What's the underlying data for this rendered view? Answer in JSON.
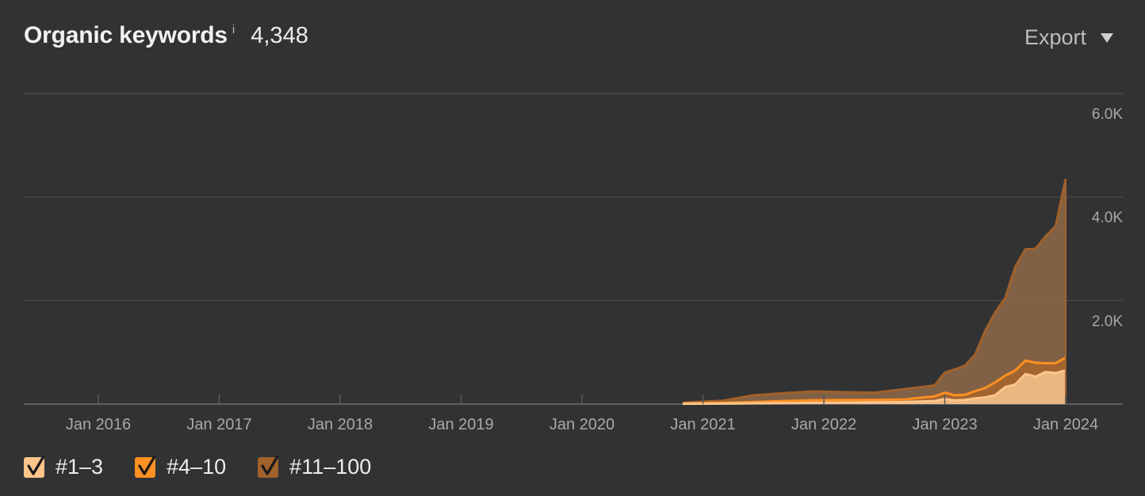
{
  "header": {
    "title": "Organic keywords",
    "info": "i",
    "count": "4,348",
    "export_label": "Export"
  },
  "legend": [
    {
      "label": "#1–3",
      "color": "#ffc58a"
    },
    {
      "label": "#4–10",
      "color": "#ff9022"
    },
    {
      "label": "#11–100",
      "color": "#a1612a"
    }
  ],
  "chart_data": {
    "type": "area",
    "stacked": true,
    "title": "Organic keywords",
    "xlabel": "",
    "ylabel": "",
    "x_tick_labels": [
      "Jan 2016",
      "Jan 2017",
      "Jan 2018",
      "Jan 2019",
      "Jan 2020",
      "Jan 2021",
      "Jan 2022",
      "Jan 2023",
      "Jan 2024"
    ],
    "y_tick_labels": [
      "2.0K",
      "4.0K",
      "6.0K"
    ],
    "y_ticks": [
      0,
      2000,
      4000,
      6000
    ],
    "ylim": [
      0,
      6000
    ],
    "x_range": [
      "2015-07",
      "2024-03"
    ],
    "grid": true,
    "legend_position": "bottom-left",
    "series": [
      {
        "name": "#1–3",
        "color": "#ffc58a",
        "points": [
          [
            "2020-11",
            5
          ],
          [
            "2021-03",
            10
          ],
          [
            "2021-06",
            15
          ],
          [
            "2021-09",
            20
          ],
          [
            "2021-12",
            25
          ],
          [
            "2022-03",
            30
          ],
          [
            "2022-06",
            35
          ],
          [
            "2022-09",
            40
          ],
          [
            "2022-12",
            60
          ],
          [
            "2023-01",
            100
          ],
          [
            "2023-02",
            70
          ],
          [
            "2023-03",
            80
          ],
          [
            "2023-04",
            110
          ],
          [
            "2023-05",
            130
          ],
          [
            "2023-06",
            170
          ],
          [
            "2023-07",
            330
          ],
          [
            "2023-08",
            380
          ],
          [
            "2023-09",
            580
          ],
          [
            "2023-10",
            530
          ],
          [
            "2023-11",
            620
          ],
          [
            "2023-12",
            600
          ],
          [
            "2024-01",
            650
          ]
        ]
      },
      {
        "name": "#4–10",
        "color": "#ff9022",
        "points": [
          [
            "2020-11",
            8
          ],
          [
            "2021-03",
            15
          ],
          [
            "2021-06",
            25
          ],
          [
            "2021-09",
            40
          ],
          [
            "2021-12",
            50
          ],
          [
            "2022-03",
            50
          ],
          [
            "2022-06",
            45
          ],
          [
            "2022-09",
            50
          ],
          [
            "2022-12",
            90
          ],
          [
            "2023-01",
            120
          ],
          [
            "2023-02",
            100
          ],
          [
            "2023-03",
            100
          ],
          [
            "2023-04",
            140
          ],
          [
            "2023-05",
            180
          ],
          [
            "2023-06",
            250
          ],
          [
            "2023-07",
            220
          ],
          [
            "2023-08",
            270
          ],
          [
            "2023-09",
            260
          ],
          [
            "2023-10",
            270
          ],
          [
            "2023-11",
            170
          ],
          [
            "2023-12",
            190
          ],
          [
            "2024-01",
            250
          ]
        ]
      },
      {
        "name": "#11–100",
        "color": "#a1612a",
        "points": [
          [
            "2020-11",
            12
          ],
          [
            "2021-03",
            40
          ],
          [
            "2021-06",
            130
          ],
          [
            "2021-09",
            150
          ],
          [
            "2021-12",
            170
          ],
          [
            "2022-03",
            150
          ],
          [
            "2022-06",
            140
          ],
          [
            "2022-09",
            200
          ],
          [
            "2022-12",
            210
          ],
          [
            "2023-01",
            390
          ],
          [
            "2023-02",
            500
          ],
          [
            "2023-03",
            560
          ],
          [
            "2023-04",
            700
          ],
          [
            "2023-05",
            1100
          ],
          [
            "2023-06",
            1350
          ],
          [
            "2023-07",
            1500
          ],
          [
            "2023-08",
            2000
          ],
          [
            "2023-09",
            2150
          ],
          [
            "2023-10",
            2200
          ],
          [
            "2023-11",
            2450
          ],
          [
            "2023-12",
            2650
          ],
          [
            "2024-01",
            3448
          ]
        ]
      }
    ]
  }
}
